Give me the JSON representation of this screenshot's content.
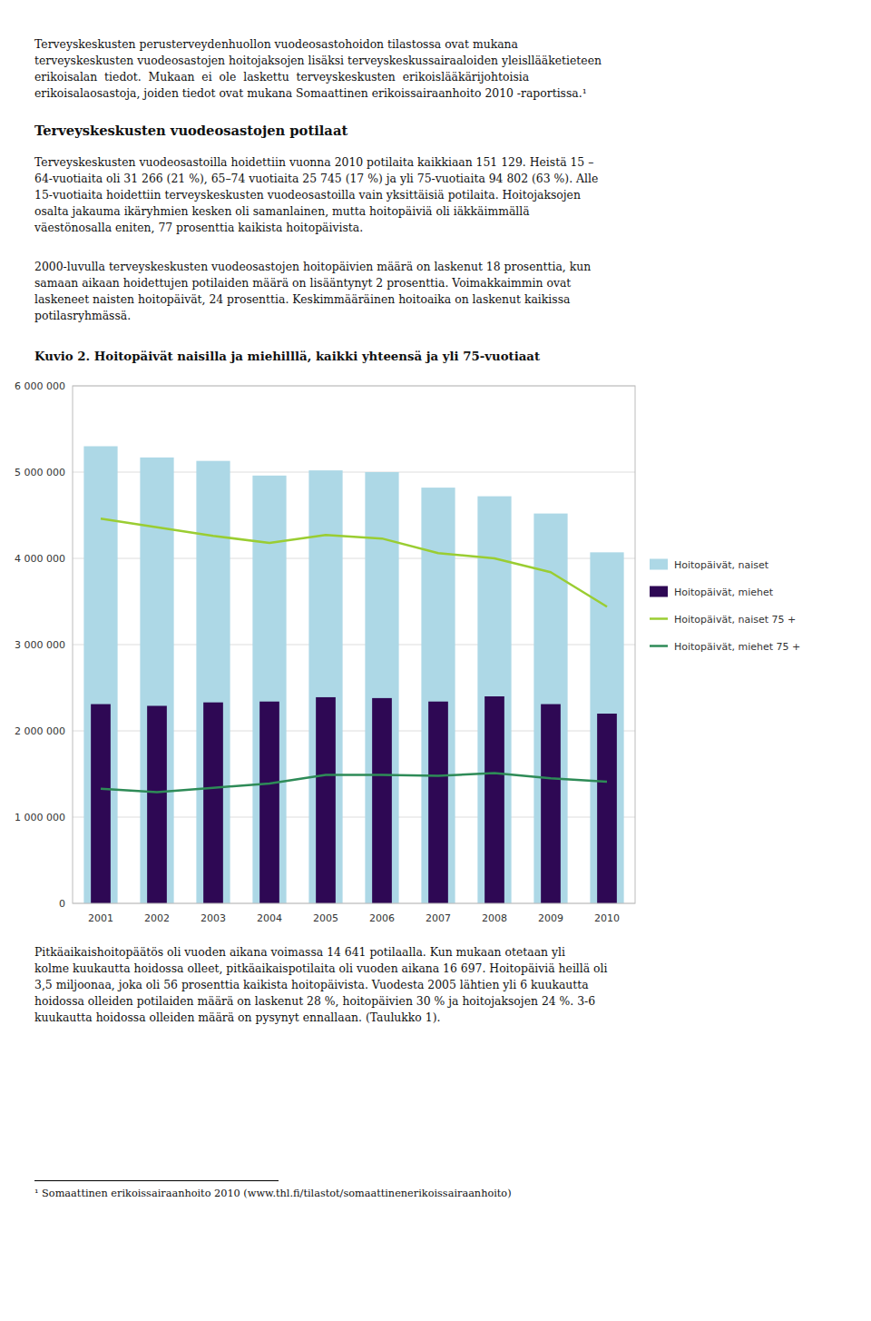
{
  "paragraphs": [
    "Terveyskeskusten perusterveydenhuollon vuodeosastohoidon tilastossa ovat mukana\nterveyskeskusten vuodeosastojen hoitojaksojen lisäksi terveyskeskussairaaloiden yleisllääketieteen\nerikoisalan  tiedot.  Mukaan  ei  ole  laskettu  terveyskeskusten  erikoislääkärijohtoisia\nerikoisalaosastoja, joiden tiedot ovat mukana Somaattinen erikoissairaanhoito 2010 -raportissa.¹",
    "Terveyskeskusten vuodeosastoilla hoidettiin vuonna 2010 potilaita kaikkiaan 151 129. Heistä 15 –\n64-vuotiaita oli 31 266 (21 %), 65–74 vuotiaita 25 745 (17 %) ja yli 75-vuotiaita 94 802 (63 %). Alle\n15-vuotiaita hoidettiin terveyskeskusten vuodeosastoilla vain yksittäisiä potilaita. Hoitojaksojen\nosalta jakauma ikäryhmien kesken oli samanlainen, mutta hoitopäiviä oli iäkkäimmällä\nväestönosalla eniten, 77 prosenttia kaikista hoitopäivista.",
    "2000-luvulla terveyskeskusten vuodeosastojen hoitopäivien määrä on laskenut 18 prosenttia, kun\nsamaan aikaan hoidettujen potilaiden määrä on lisääntynyt 2 prosenttia. Voimakkaimmin ovat\nlaskeneet naisten hoitopäivät, 24 prosenttia. Keskimmääräinen hoitoaika on laskenut kaikissa\npotilasryhmässä.",
    "Pitkäaikaishoitopäätös oli vuoden aikana voimassa 14 641 potilaalla. Kun mukaan otetaan yli\nkolme kuukautta hoidossa olleet, pitkäaikaispotilaita oli vuoden aikana 16 697. Hoitopäiviä heillä oli\n3,5 miljoonaa, joka oli 56 prosenttia kaikista hoitopäivista. Vuodesta 2005 lähtien yli 6 kuukautta\nhoidossa olleiden potilaiden määrä on laskenut 28 %, hoitopäivien 30 % ja hoitojaksojen 24 %. 3-6\nkuukautta hoidossa olleiden määrä on pysynyt ennallaan. (Taulukko 1)."
  ],
  "heading": "Terveyskeskusten vuodeosastojen potilaat",
  "footnote": "¹ Somaattinen erikoissairaanhoito 2010 (www.thl.fi/tilastot/somaattinenerikoissairaanhoito)",
  "chart_data": {
    "type": "bar",
    "title": "Kuvio 2. Hoitopäivät naisilla ja miehilllä, kaikki yhteensä ja yli 75-vuotiaat",
    "categories": [
      "2001",
      "2002",
      "2003",
      "2004",
      "2005",
      "2006",
      "2007",
      "2008",
      "2009",
      "2010"
    ],
    "series": [
      {
        "name": "Hoitopäivät, naiset",
        "type": "bar",
        "color": "#add8e6",
        "values": [
          5300000,
          5170000,
          5130000,
          4960000,
          5020000,
          5000000,
          4820000,
          4720000,
          4520000,
          4070000
        ]
      },
      {
        "name": "Hoitopäivät, miehet",
        "type": "bar",
        "color": "#2e0854",
        "values": [
          2310000,
          2290000,
          2330000,
          2340000,
          2390000,
          2380000,
          2340000,
          2400000,
          2310000,
          2200000
        ]
      },
      {
        "name": "Hoitopäivät, naiset 75 +",
        "type": "line",
        "color": "#9acd32",
        "values": [
          4460000,
          4360000,
          4260000,
          4180000,
          4270000,
          4230000,
          4060000,
          4000000,
          3840000,
          3440000
        ]
      },
      {
        "name": "Hoitopäivät, miehet 75 +",
        "type": "line",
        "color": "#2e8b57",
        "values": [
          1330000,
          1290000,
          1340000,
          1390000,
          1490000,
          1490000,
          1480000,
          1510000,
          1450000,
          1410000
        ]
      }
    ],
    "ylim": [
      0,
      6000000
    ],
    "yticks": [
      0,
      {
        "value": 1000000,
        "label": "1 000 000"
      },
      {
        "value": 2000000,
        "label": "2 000 000"
      },
      {
        "value": 3000000,
        "label": "3 000 000"
      },
      {
        "value": 4000000,
        "label": "4 000 000"
      },
      {
        "value": 5000000,
        "label": "5 000 000"
      },
      {
        "value": 6000000,
        "label": "6 000 000"
      }
    ],
    "grid": true,
    "legend": "right"
  }
}
